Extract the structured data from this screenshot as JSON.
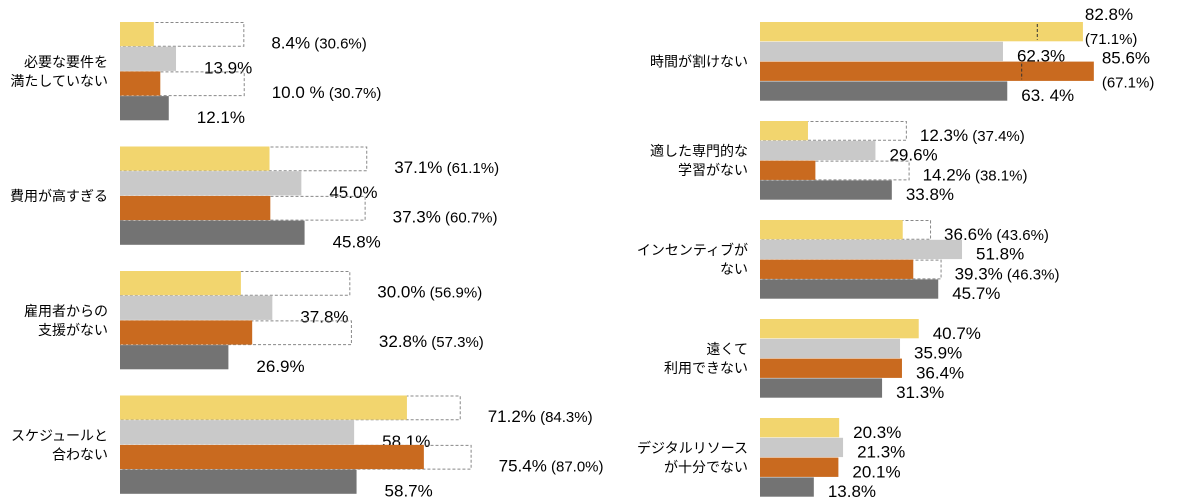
{
  "chart_data": [
    {
      "type": "bar",
      "orientation": "horizontal",
      "colors": [
        "#F2D56E",
        "#C9C9C9",
        "#C96A1F",
        "#737373"
      ],
      "reference_style": "dashed outline",
      "groups": [
        {
          "category": [
            "必要な要件を",
            "満たしていない"
          ],
          "values": [
            8.4,
            13.9,
            10.0,
            12.1
          ],
          "refs": [
            30.6,
            null,
            30.7,
            null
          ],
          "labels": [
            "8.4%",
            "13.9%",
            "10.0 %",
            "12.1%"
          ],
          "ref_labels": [
            "(30.6%)",
            null,
            "(30.7%)",
            null
          ]
        },
        {
          "category": [
            "費用が高すぎる"
          ],
          "values": [
            37.1,
            45.0,
            37.3,
            45.8
          ],
          "refs": [
            61.1,
            null,
            60.7,
            null
          ],
          "labels": [
            "37.1%",
            "45.0%",
            "37.3%",
            "45.8%"
          ],
          "ref_labels": [
            "(61.1%)",
            null,
            "(60.7%)",
            null
          ]
        },
        {
          "category": [
            "雇用者からの",
            "支援がない"
          ],
          "values": [
            30.0,
            37.8,
            32.8,
            26.9
          ],
          "refs": [
            56.9,
            null,
            57.3,
            null
          ],
          "labels": [
            "30.0%",
            "37.8%",
            "32.8%",
            "26.9%"
          ],
          "ref_labels": [
            "(56.9%)",
            null,
            "(57.3%)",
            null
          ]
        },
        {
          "category": [
            "スケジュールと",
            "合わない"
          ],
          "values": [
            71.2,
            58.1,
            75.4,
            58.7
          ],
          "refs": [
            84.3,
            null,
            87.0,
            null
          ],
          "labels": [
            "71.2%",
            "58.1%",
            "75.4%",
            "58.7%"
          ],
          "ref_labels": [
            "(84.3%)",
            null,
            "(87.0%)",
            null
          ]
        }
      ]
    },
    {
      "type": "bar",
      "orientation": "horizontal",
      "colors": [
        "#F2D56E",
        "#C9C9C9",
        "#C96A1F",
        "#737373"
      ],
      "reference_style": "dashed outline",
      "groups": [
        {
          "category": [
            "時間が割けない"
          ],
          "values": [
            82.8,
            62.3,
            85.6,
            63.4
          ],
          "refs": [
            71.1,
            null,
            67.1,
            null
          ],
          "labels": [
            "82.8%",
            "62.3%",
            "85.6%",
            "63. 4%"
          ],
          "ref_labels": [
            "(71.1%)",
            null,
            "(67.1%)",
            null
          ]
        },
        {
          "category": [
            "適した専門的な",
            "学習がない"
          ],
          "values": [
            12.3,
            29.6,
            14.2,
            33.8
          ],
          "refs": [
            37.4,
            null,
            38.1,
            null
          ],
          "labels": [
            "12.3%",
            "29.6%",
            "14.2%",
            "33.8%"
          ],
          "ref_labels": [
            "(37.4%)",
            null,
            "(38.1%)",
            null
          ]
        },
        {
          "category": [
            "インセンティブが",
            "ない"
          ],
          "values": [
            36.6,
            51.8,
            39.3,
            45.7
          ],
          "refs": [
            43.6,
            null,
            46.3,
            null
          ],
          "labels": [
            "36.6%",
            "51.8%",
            "39.3%",
            "45.7%"
          ],
          "ref_labels": [
            "(43.6%)",
            null,
            "(46.3%)",
            null
          ]
        },
        {
          "category": [
            "遠くて",
            "利用できない"
          ],
          "values": [
            40.7,
            35.9,
            36.4,
            31.3
          ],
          "refs": [
            null,
            null,
            null,
            null
          ],
          "labels": [
            "40.7%",
            "35.9%",
            "36.4%",
            "31.3%"
          ],
          "ref_labels": [
            null,
            null,
            null,
            null
          ]
        },
        {
          "category": [
            "デジタルリソース",
            "が十分でない"
          ],
          "values": [
            20.3,
            21.3,
            20.1,
            13.8
          ],
          "refs": [
            null,
            null,
            null,
            null
          ],
          "labels": [
            "20.3%",
            "21.3%",
            "20.1%",
            "13.8%"
          ],
          "ref_labels": [
            null,
            null,
            null,
            null
          ]
        }
      ]
    }
  ]
}
